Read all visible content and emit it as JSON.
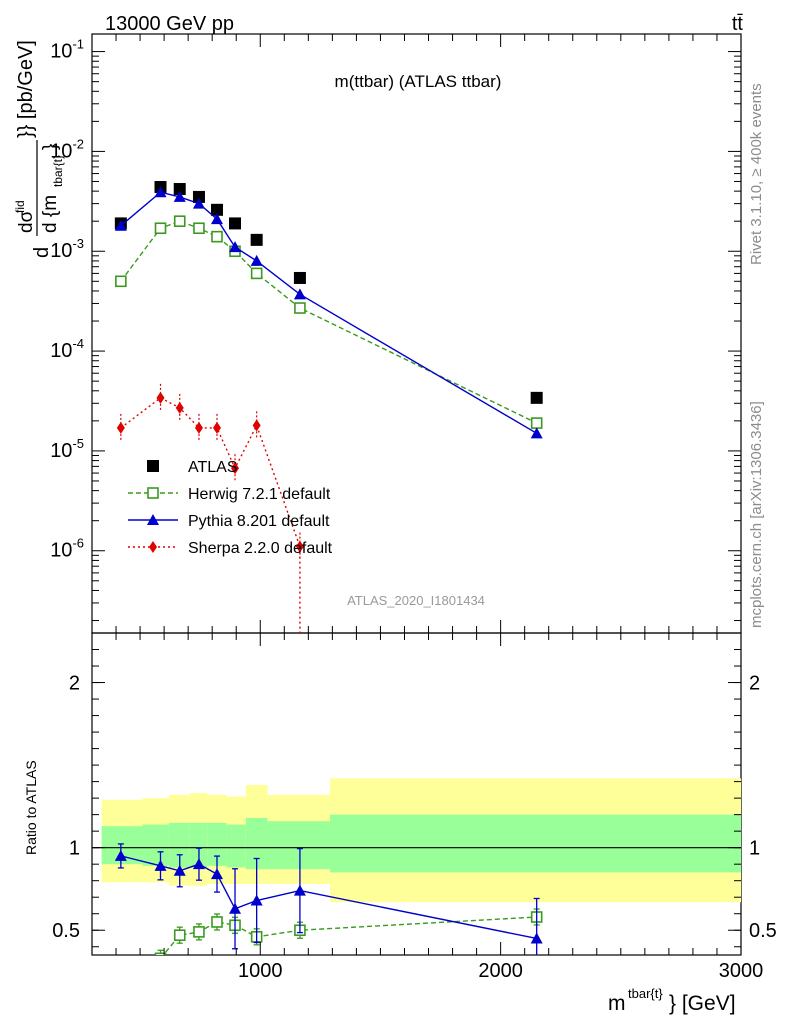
{
  "header": {
    "left": "13000 GeV pp",
    "right": "tt̄"
  },
  "side_labels": {
    "upper": "Rivet 3.1.10, ≥ 400k events",
    "lower": "mcplots.cern.ch [arXiv:1306.3436]"
  },
  "chart_data": [
    {
      "type": "line",
      "title": "m(ttbar) (ATLAS ttbar)",
      "watermark": "ATLAS_2020_I1801434",
      "ylabel": "d dσ^fid / d {m^tbar{t}} [pb/GeV]",
      "yscale": "log",
      "xlim": [
        300,
        3000
      ],
      "ylim": [
        1.5e-07,
        0.15
      ],
      "y_ticks": [
        "10^-1",
        "10^-2",
        "10^-3",
        "10^-4",
        "10^-5",
        "10^-6"
      ],
      "legend_position": "lower-left",
      "series": [
        {
          "name": "ATLAS",
          "color": "#000000",
          "marker": "square-filled",
          "line": "none",
          "x": [
            420,
            585,
            665,
            745,
            820,
            895,
            985,
            1165,
            2150
          ],
          "y": [
            0.0019,
            0.0044,
            0.0042,
            0.0035,
            0.0026,
            0.0019,
            0.0013,
            0.00054,
            3.4e-05
          ]
        },
        {
          "name": "Herwig 7.2.1 default",
          "color": "#3a9a1f",
          "marker": "square-open",
          "line": "dashed",
          "x": [
            420,
            585,
            665,
            745,
            820,
            895,
            985,
            1165,
            2150
          ],
          "y": [
            0.0005,
            0.0017,
            0.002,
            0.0017,
            0.0014,
            0.001,
            0.0006,
            0.00027,
            1.9e-05
          ]
        },
        {
          "name": "Pythia 8.201 default",
          "color": "#0000cc",
          "marker": "triangle-filled",
          "line": "solid",
          "x": [
            420,
            585,
            665,
            745,
            820,
            895,
            985,
            1165,
            2150
          ],
          "y": [
            0.0018,
            0.0039,
            0.0035,
            0.003,
            0.0021,
            0.0011,
            0.0008,
            0.00037,
            1.5e-05
          ]
        },
        {
          "name": "Sherpa 2.2.0 default",
          "color": "#e00000",
          "marker": "diamond-filled",
          "line": "dotted",
          "x": [
            420,
            585,
            665,
            745,
            820,
            895,
            985,
            1165
          ],
          "y": [
            1.7e-05,
            3.4e-05,
            2.7e-05,
            1.7e-05,
            1.7e-05,
            6.7e-06,
            1.8e-05,
            1.1e-06
          ]
        }
      ]
    },
    {
      "type": "line",
      "ylabel": "Ratio to ATLAS",
      "xlabel": "m^tbar{t} [GeV]",
      "xlim": [
        300,
        3000
      ],
      "ylim": [
        0.35,
        2.3
      ],
      "x_ticks": [
        "1000",
        "2000",
        "3000"
      ],
      "y_ticks": [
        "2",
        "1",
        "0.5"
      ],
      "bands": {
        "edges": [
          340,
          510,
          620,
          705,
          780,
          860,
          940,
          1030,
          1290,
          3000
        ],
        "outer_low": [
          0.79,
          0.79,
          0.77,
          0.77,
          0.78,
          0.78,
          0.78,
          0.78,
          0.67
        ],
        "outer_high": [
          1.29,
          1.3,
          1.32,
          1.33,
          1.32,
          1.31,
          1.38,
          1.32,
          1.42
        ],
        "inner_low": [
          0.9,
          0.89,
          0.88,
          0.88,
          0.89,
          0.88,
          0.87,
          0.87,
          0.85
        ],
        "inner_high": [
          1.13,
          1.14,
          1.15,
          1.15,
          1.15,
          1.14,
          1.18,
          1.16,
          1.2
        ],
        "outer_color": "#ffff99",
        "inner_color": "#99ff99"
      },
      "series": [
        {
          "name": "Herwig 7.2.1 default",
          "color": "#3a9a1f",
          "marker": "square-open",
          "line": "dashed",
          "x": [
            585,
            665,
            745,
            820,
            895,
            985,
            1165,
            2150
          ],
          "y": [
            0.33,
            0.47,
            0.49,
            0.55,
            0.53,
            0.46,
            0.5,
            0.58
          ]
        },
        {
          "name": "Pythia 8.201 default",
          "color": "#0000cc",
          "marker": "triangle-filled",
          "line": "solid",
          "x": [
            420,
            585,
            665,
            745,
            820,
            895,
            985,
            1165,
            2150
          ],
          "y": [
            0.95,
            0.89,
            0.86,
            0.9,
            0.84,
            0.63,
            0.68,
            0.74,
            0.45
          ]
        }
      ]
    }
  ]
}
